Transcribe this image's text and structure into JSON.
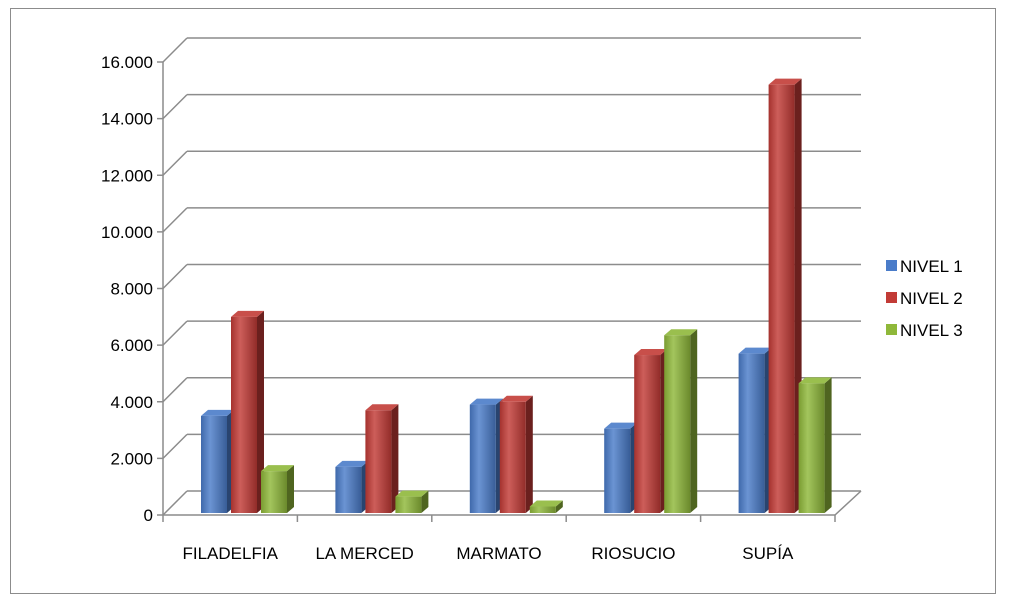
{
  "chart_data": {
    "type": "bar",
    "categories": [
      "FILADELFIA",
      "LA MERCED",
      "MARMATO",
      "RIOSUCIO",
      "SUPÍA"
    ],
    "series": [
      {
        "name": "NIVEL 1",
        "values": [
          3500,
          1700,
          3900,
          3050,
          5700
        ],
        "color": "#4a7cc9"
      },
      {
        "name": "NIVEL 2",
        "values": [
          7000,
          3700,
          4000,
          5650,
          15200
        ],
        "color": "#c23b36"
      },
      {
        "name": "NIVEL 3",
        "values": [
          1550,
          650,
          300,
          6350,
          4650
        ],
        "color": "#8fb83a"
      }
    ],
    "y_ticks": [
      "0",
      "2.000",
      "4.000",
      "6.000",
      "8.000",
      "10.000",
      "12.000",
      "14.000",
      "16.000"
    ],
    "ylim": [
      0,
      16000
    ],
    "grid": true,
    "legend_position": "right",
    "style": "3d-clustered-column"
  }
}
